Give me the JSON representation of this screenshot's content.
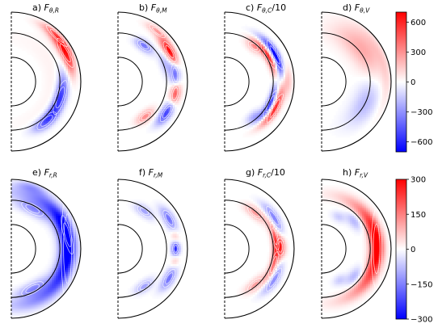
{
  "chart_data": {
    "type": "heatmap",
    "colormap": "bwr",
    "row_colorbars": [
      {
        "ticks": [
          "600",
          "300",
          "0",
          "−300",
          "−600"
        ],
        "tick_values": [
          600,
          300,
          0,
          -300,
          -600
        ],
        "range": [
          -700,
          700
        ]
      },
      {
        "ticks": [
          "300",
          "150",
          "0",
          "−150",
          "−300"
        ],
        "tick_values": [
          300,
          150,
          0,
          -150,
          -300
        ],
        "range": [
          -300,
          300
        ]
      }
    ],
    "panels": [
      {
        "label": "a)",
        "sym": "F",
        "sub": "θ,R",
        "suffix": "",
        "row": 0,
        "blobs": [
          {
            "r": 0.88,
            "th": 28,
            "a": 620,
            "sr": 0.05,
            "st": 14
          },
          {
            "r": 0.93,
            "th": 45,
            "a": 380,
            "sr": 0.04,
            "st": 12
          },
          {
            "r": 0.74,
            "th": -18,
            "a": -560,
            "sr": 0.06,
            "st": 18
          },
          {
            "r": 0.76,
            "th": -48,
            "a": -420,
            "sr": 0.06,
            "st": 12
          },
          {
            "r": 0.62,
            "th": 0,
            "a": 40,
            "sr": 0.1,
            "st": 60
          }
        ]
      },
      {
        "label": "b)",
        "sym": "F",
        "sub": "θ,M",
        "suffix": "",
        "row": 0,
        "blobs": [
          {
            "r": 0.86,
            "th": 30,
            "a": 720,
            "sr": 0.045,
            "st": 10
          },
          {
            "r": 0.83,
            "th": 7,
            "a": -480,
            "sr": 0.05,
            "st": 10
          },
          {
            "r": 0.84,
            "th": -12,
            "a": 580,
            "sr": 0.05,
            "st": 9
          },
          {
            "r": 0.83,
            "th": -32,
            "a": -560,
            "sr": 0.05,
            "st": 10
          },
          {
            "r": 0.64,
            "th": 54,
            "a": -380,
            "sr": 0.05,
            "st": 9
          },
          {
            "r": 0.64,
            "th": -52,
            "a": 320,
            "sr": 0.05,
            "st": 9
          },
          {
            "r": 0.92,
            "th": 52,
            "a": 260,
            "sr": 0.04,
            "st": 8
          },
          {
            "r": 0.72,
            "th": 20,
            "a": -180,
            "sr": 0.05,
            "st": 10
          }
        ]
      },
      {
        "label": "c)",
        "sym": "F",
        "sub": "θ,C",
        "suffix": "/10",
        "row": 0,
        "blobs": [
          {
            "r": 0.82,
            "th": 28,
            "a": -760,
            "sr": 0.04,
            "st": 15
          },
          {
            "r": 0.73,
            "th": 30,
            "a": 620,
            "sr": 0.04,
            "st": 15
          },
          {
            "r": 0.82,
            "th": -28,
            "a": 620,
            "sr": 0.04,
            "st": 15
          },
          {
            "r": 0.73,
            "th": -26,
            "a": -560,
            "sr": 0.04,
            "st": 15
          },
          {
            "r": 0.66,
            "th": 50,
            "a": 260,
            "sr": 0.05,
            "st": 8
          },
          {
            "r": 0.66,
            "th": -50,
            "a": -220,
            "sr": 0.05,
            "st": 8
          },
          {
            "r": 0.9,
            "th": 0,
            "a": 180,
            "sr": 0.05,
            "st": 10
          }
        ]
      },
      {
        "label": "d)",
        "sym": "F",
        "sub": "θ,V",
        "suffix": "",
        "row": 0,
        "blobs": [
          {
            "r": 0.75,
            "th": 38,
            "a": 240,
            "sr": 0.14,
            "st": 26
          },
          {
            "r": 0.7,
            "th": -25,
            "a": -200,
            "sr": 0.12,
            "st": 22
          },
          {
            "r": 0.93,
            "th": 5,
            "a": 90,
            "sr": 0.05,
            "st": 30
          }
        ]
      },
      {
        "label": "e)",
        "sym": "F",
        "sub": "r,R",
        "suffix": "",
        "row": 1,
        "blobs": [
          {
            "r": 0.81,
            "th": 0,
            "a": -300,
            "sr": 0.085,
            "st": 52
          },
          {
            "r": 0.83,
            "th": 14,
            "a": -120,
            "sr": 0.05,
            "st": 18
          },
          {
            "r": 0.65,
            "th": 62,
            "a": -120,
            "sr": 0.06,
            "st": 14
          },
          {
            "r": 0.65,
            "th": -62,
            "a": -120,
            "sr": 0.06,
            "st": 14
          },
          {
            "r": 0.93,
            "th": 72,
            "a": -90,
            "sr": 0.05,
            "st": 10
          }
        ]
      },
      {
        "label": "f)",
        "sym": "F",
        "sub": "r,M",
        "suffix": "",
        "row": 1,
        "blobs": [
          {
            "r": 0.85,
            "th": 30,
            "a": -170,
            "sr": 0.05,
            "st": 9
          },
          {
            "r": 0.83,
            "th": 0,
            "a": -270,
            "sr": 0.04,
            "st": 5
          },
          {
            "r": 0.85,
            "th": -30,
            "a": -170,
            "sr": 0.05,
            "st": 9
          },
          {
            "r": 0.66,
            "th": 55,
            "a": -110,
            "sr": 0.05,
            "st": 9
          },
          {
            "r": 0.66,
            "th": -55,
            "a": -110,
            "sr": 0.05,
            "st": 9
          },
          {
            "r": 0.84,
            "th": 12,
            "a": 80,
            "sr": 0.04,
            "st": 6
          },
          {
            "r": 0.84,
            "th": -12,
            "a": 80,
            "sr": 0.04,
            "st": 6
          }
        ]
      },
      {
        "label": "g)",
        "sym": "F",
        "sub": "r,C",
        "suffix": "/10",
        "row": 1,
        "blobs": [
          {
            "r": 0.8,
            "th": 2,
            "a": 230,
            "sr": 0.05,
            "st": 8
          },
          {
            "r": 0.74,
            "th": 14,
            "a": 160,
            "sr": 0.04,
            "st": 14
          },
          {
            "r": 0.74,
            "th": -18,
            "a": 160,
            "sr": 0.04,
            "st": 14
          },
          {
            "r": 0.84,
            "th": 32,
            "a": -150,
            "sr": 0.045,
            "st": 12
          },
          {
            "r": 0.84,
            "th": -32,
            "a": -140,
            "sr": 0.045,
            "st": 12
          },
          {
            "r": 0.68,
            "th": 50,
            "a": 120,
            "sr": 0.05,
            "st": 10
          },
          {
            "r": 0.68,
            "th": -50,
            "a": 110,
            "sr": 0.05,
            "st": 10
          }
        ]
      },
      {
        "label": "h)",
        "sym": "F",
        "sub": "r,V",
        "suffix": "",
        "row": 1,
        "blobs": [
          {
            "r": 0.79,
            "th": 0,
            "a": 300,
            "sr": 0.07,
            "st": 38
          },
          {
            "r": 0.82,
            "th": 10,
            "a": 60,
            "sr": 0.05,
            "st": 16
          },
          {
            "r": 0.62,
            "th": 40,
            "a": -90,
            "sr": 0.06,
            "st": 10
          },
          {
            "r": 0.62,
            "th": -40,
            "a": -90,
            "sr": 0.06,
            "st": 10
          },
          {
            "r": 0.52,
            "th": 62,
            "a": -60,
            "sr": 0.05,
            "st": 8
          },
          {
            "r": 0.52,
            "th": -60,
            "a": -60,
            "sr": 0.05,
            "st": 8
          }
        ]
      }
    ],
    "shell_radii": [
      0.35,
      0.7,
      1.0
    ]
  }
}
